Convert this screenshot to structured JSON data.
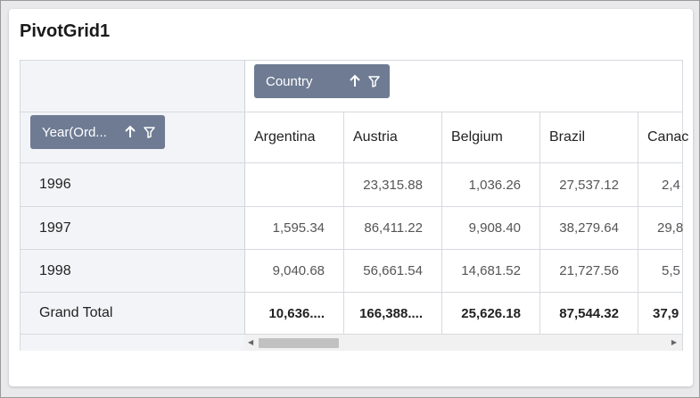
{
  "title": "PivotGrid1",
  "column_field": {
    "label": "Country"
  },
  "row_field": {
    "label": "Year(Ord..."
  },
  "columns": [
    "Argentina",
    "Austria",
    "Belgium",
    "Brazil",
    "Canac"
  ],
  "rows": [
    {
      "label": "1996",
      "values": [
        "",
        "23,315.88",
        "1,036.26",
        "27,537.12",
        "2,4"
      ]
    },
    {
      "label": "1997",
      "values": [
        "1,595.34",
        "86,411.22",
        "9,908.40",
        "38,279.64",
        "29,8"
      ]
    },
    {
      "label": "1998",
      "values": [
        "9,040.68",
        "56,661.54",
        "14,681.52",
        "21,727.56",
        "5,5"
      ]
    }
  ],
  "grand_total": {
    "label": "Grand Total",
    "values": [
      "10,636....",
      "166,388....",
      "25,626.18",
      "87,544.32",
      "37,9"
    ]
  },
  "icons": {
    "sort": "arrow-up-icon",
    "filter": "filter-icon",
    "scroll_left": "triangle-left-icon",
    "scroll_right": "triangle-right-icon"
  }
}
